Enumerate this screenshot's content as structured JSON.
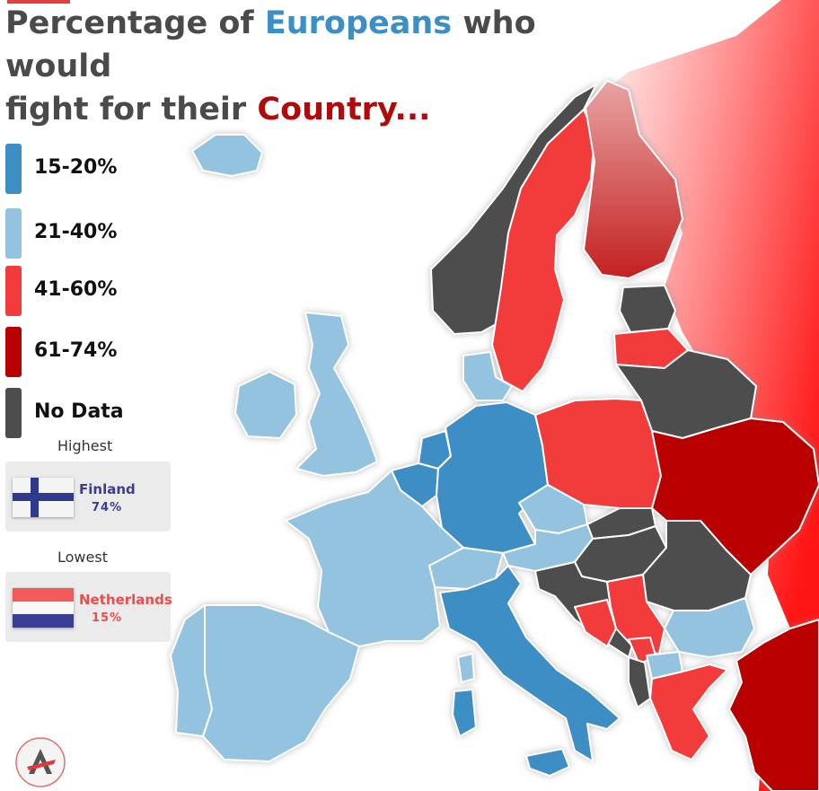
{
  "title": {
    "part1": "Percentage of ",
    "part2": "Europeans",
    "part3": " who would",
    "part4": "fight for their ",
    "part5": "Country..."
  },
  "legend": [
    {
      "label": "15-20%",
      "color": "#3d8ec4"
    },
    {
      "label": "21-40%",
      "color": "#93c3de"
    },
    {
      "label": "41-60%",
      "color": "#f23b3b"
    },
    {
      "label": "61-74%",
      "color": "#b80202"
    },
    {
      "label": "No Data",
      "color": "#4d4d4d"
    }
  ],
  "highest": {
    "label": "Highest",
    "country": "Finland",
    "value": "74%",
    "text_color": "#3b3e8c"
  },
  "lowest": {
    "label": "Lowest",
    "country": "Netherlands",
    "value": "15%",
    "text_color": "#ef4b4b"
  },
  "colors": {
    "low": "#3d8ec4",
    "lowmid": "#93c3de",
    "mid": "#f23b3b",
    "high": "#b80202",
    "nodata": "#4d4d4d"
  }
}
